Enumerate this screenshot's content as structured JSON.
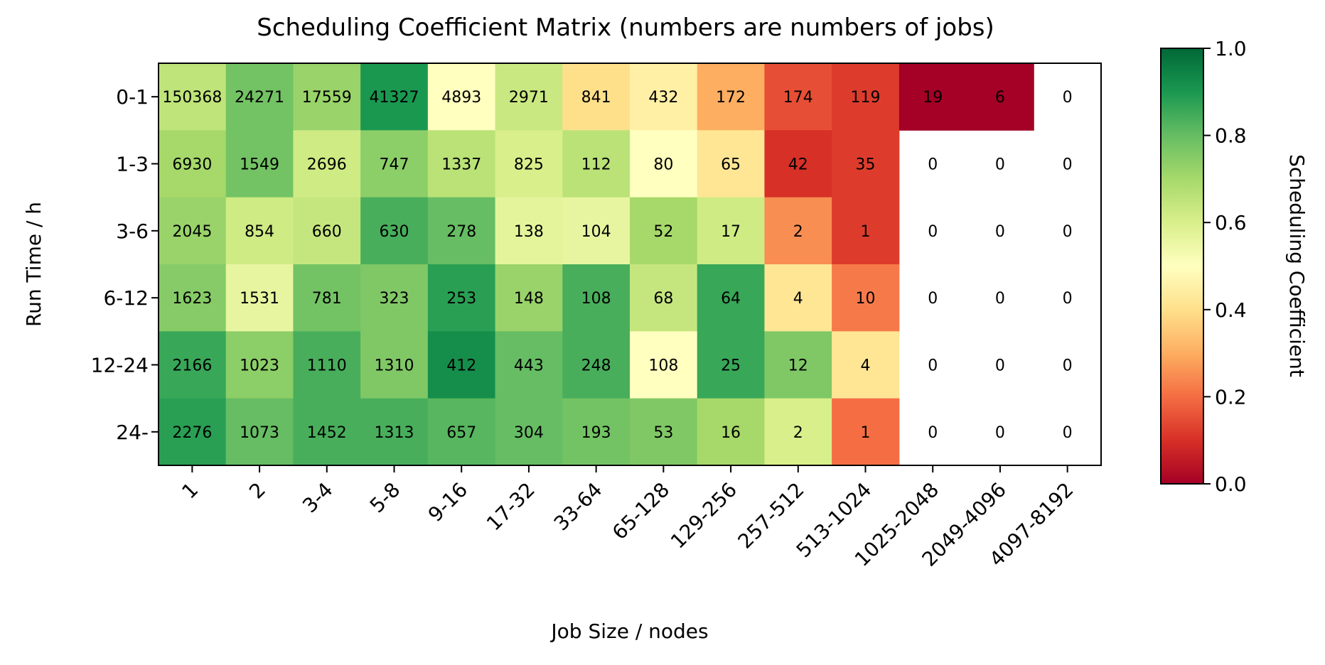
{
  "chart_data": {
    "type": "heatmap",
    "title": "Scheduling Coefficient Matrix (numbers are numbers of jobs)",
    "xlabel": "Job Size / nodes",
    "ylabel": "Run Time / h",
    "x_categories": [
      "1",
      "2",
      "3-4",
      "5-8",
      "9-16",
      "17-32",
      "33-64",
      "65-128",
      "129-256",
      "257-512",
      "513-1024",
      "1025-2048",
      "2049-4096",
      "4097-8192"
    ],
    "y_categories": [
      "0-1",
      "1-3",
      "3-6",
      "6-12",
      "12-24",
      "24-"
    ],
    "job_counts": [
      [
        150368,
        24271,
        17559,
        41327,
        4893,
        2971,
        841,
        432,
        172,
        174,
        119,
        19,
        6,
        0
      ],
      [
        6930,
        1549,
        2696,
        747,
        1337,
        825,
        112,
        80,
        65,
        42,
        35,
        0,
        0,
        0
      ],
      [
        2045,
        854,
        660,
        630,
        278,
        138,
        104,
        52,
        17,
        2,
        1,
        0,
        0,
        0
      ],
      [
        1623,
        1531,
        781,
        323,
        253,
        148,
        108,
        68,
        64,
        4,
        10,
        0,
        0,
        0
      ],
      [
        2166,
        1023,
        1110,
        1310,
        412,
        443,
        248,
        108,
        25,
        12,
        4,
        0,
        0,
        0
      ],
      [
        2276,
        1073,
        1452,
        1313,
        657,
        304,
        193,
        53,
        16,
        2,
        1,
        0,
        0,
        0
      ]
    ],
    "coefficients": [
      [
        0.65,
        0.78,
        0.72,
        0.9,
        0.5,
        0.63,
        0.4,
        0.45,
        0.3,
        0.15,
        0.12,
        0.0,
        0.0,
        null
      ],
      [
        0.7,
        0.78,
        0.62,
        0.74,
        0.66,
        0.6,
        0.66,
        0.5,
        0.42,
        0.1,
        0.12,
        null,
        null,
        null
      ],
      [
        0.72,
        0.62,
        0.64,
        0.84,
        0.8,
        0.57,
        0.56,
        0.7,
        0.62,
        0.25,
        0.12,
        null,
        null,
        null
      ],
      [
        0.75,
        0.56,
        0.78,
        0.76,
        0.88,
        0.72,
        0.84,
        0.64,
        0.86,
        0.42,
        0.22,
        null,
        null,
        null
      ],
      [
        0.86,
        0.74,
        0.84,
        0.76,
        0.92,
        0.8,
        0.84,
        0.5,
        0.86,
        0.76,
        0.42,
        null,
        null,
        null
      ],
      [
        0.88,
        0.8,
        0.84,
        0.84,
        0.82,
        0.8,
        0.78,
        0.76,
        0.7,
        0.6,
        0.2,
        null,
        null,
        null
      ]
    ],
    "colorbar": {
      "label": "Scheduling Coefficient",
      "range": [
        0.0,
        1.0
      ],
      "tick_labels": [
        "0.0",
        "0.2",
        "0.4",
        "0.6",
        "0.8",
        "1.0"
      ],
      "colormap": "RdYlGn"
    }
  }
}
